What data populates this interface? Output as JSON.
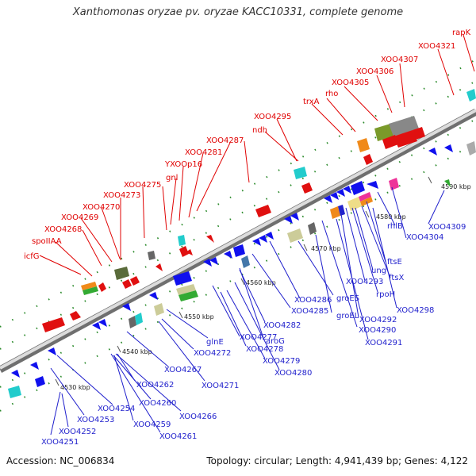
{
  "title": "Xanthomonas oryzae pv. oryzae KACC10331, complete genome",
  "accession_label": "Accession: NC_006834",
  "summary_label": "Topology: circular; Length: 4,941,439 bp; Genes: 4,122",
  "colors": {
    "forward_label": "#e00000",
    "reverse_label": "#1f1fcc",
    "backbone": "#9a9a9a",
    "tick": "#2a8a2a"
  },
  "scale_ticks": [
    "4530 kbp",
    "4540 kbp",
    "4550 kbp",
    "4560 kbp",
    "4570 kbp",
    "4580 kbp",
    "4590 kbp"
  ],
  "top_labels": [
    "icfG",
    "spoIIAA",
    "XOO4268",
    "XOO4269",
    "XOO4270",
    "XOO4273",
    "XOO4275",
    "gnl",
    "YXOOp16",
    "XOO4281",
    "XOO4287",
    "ndh",
    "XOO4295",
    "trxA",
    "rho",
    "XOO4305",
    "XOO4306",
    "XOO4307",
    "XOO4321",
    "rapK"
  ],
  "bottom_labels": [
    "XOO4251",
    "XOO4252",
    "XOO4253",
    "XOO4254",
    "XOO4259",
    "XOO4260",
    "XOO4261",
    "XOO4262",
    "XOO4266",
    "XOO4267",
    "XOO4271",
    "XOO4272",
    "glnE",
    "XOO4277",
    "XOO4278",
    "XOO4279",
    "XOO4280",
    "XOO4282",
    "aroG",
    "XOO4285",
    "XOO4286",
    "groES",
    "groEL",
    "XOO4290",
    "XOO4291",
    "XOO4292",
    "XOO4293",
    "rpoH",
    "ung",
    "ftsX",
    "ftsE",
    "XOO4298",
    "rhlB",
    "XOO4304",
    "XOO4309"
  ]
}
